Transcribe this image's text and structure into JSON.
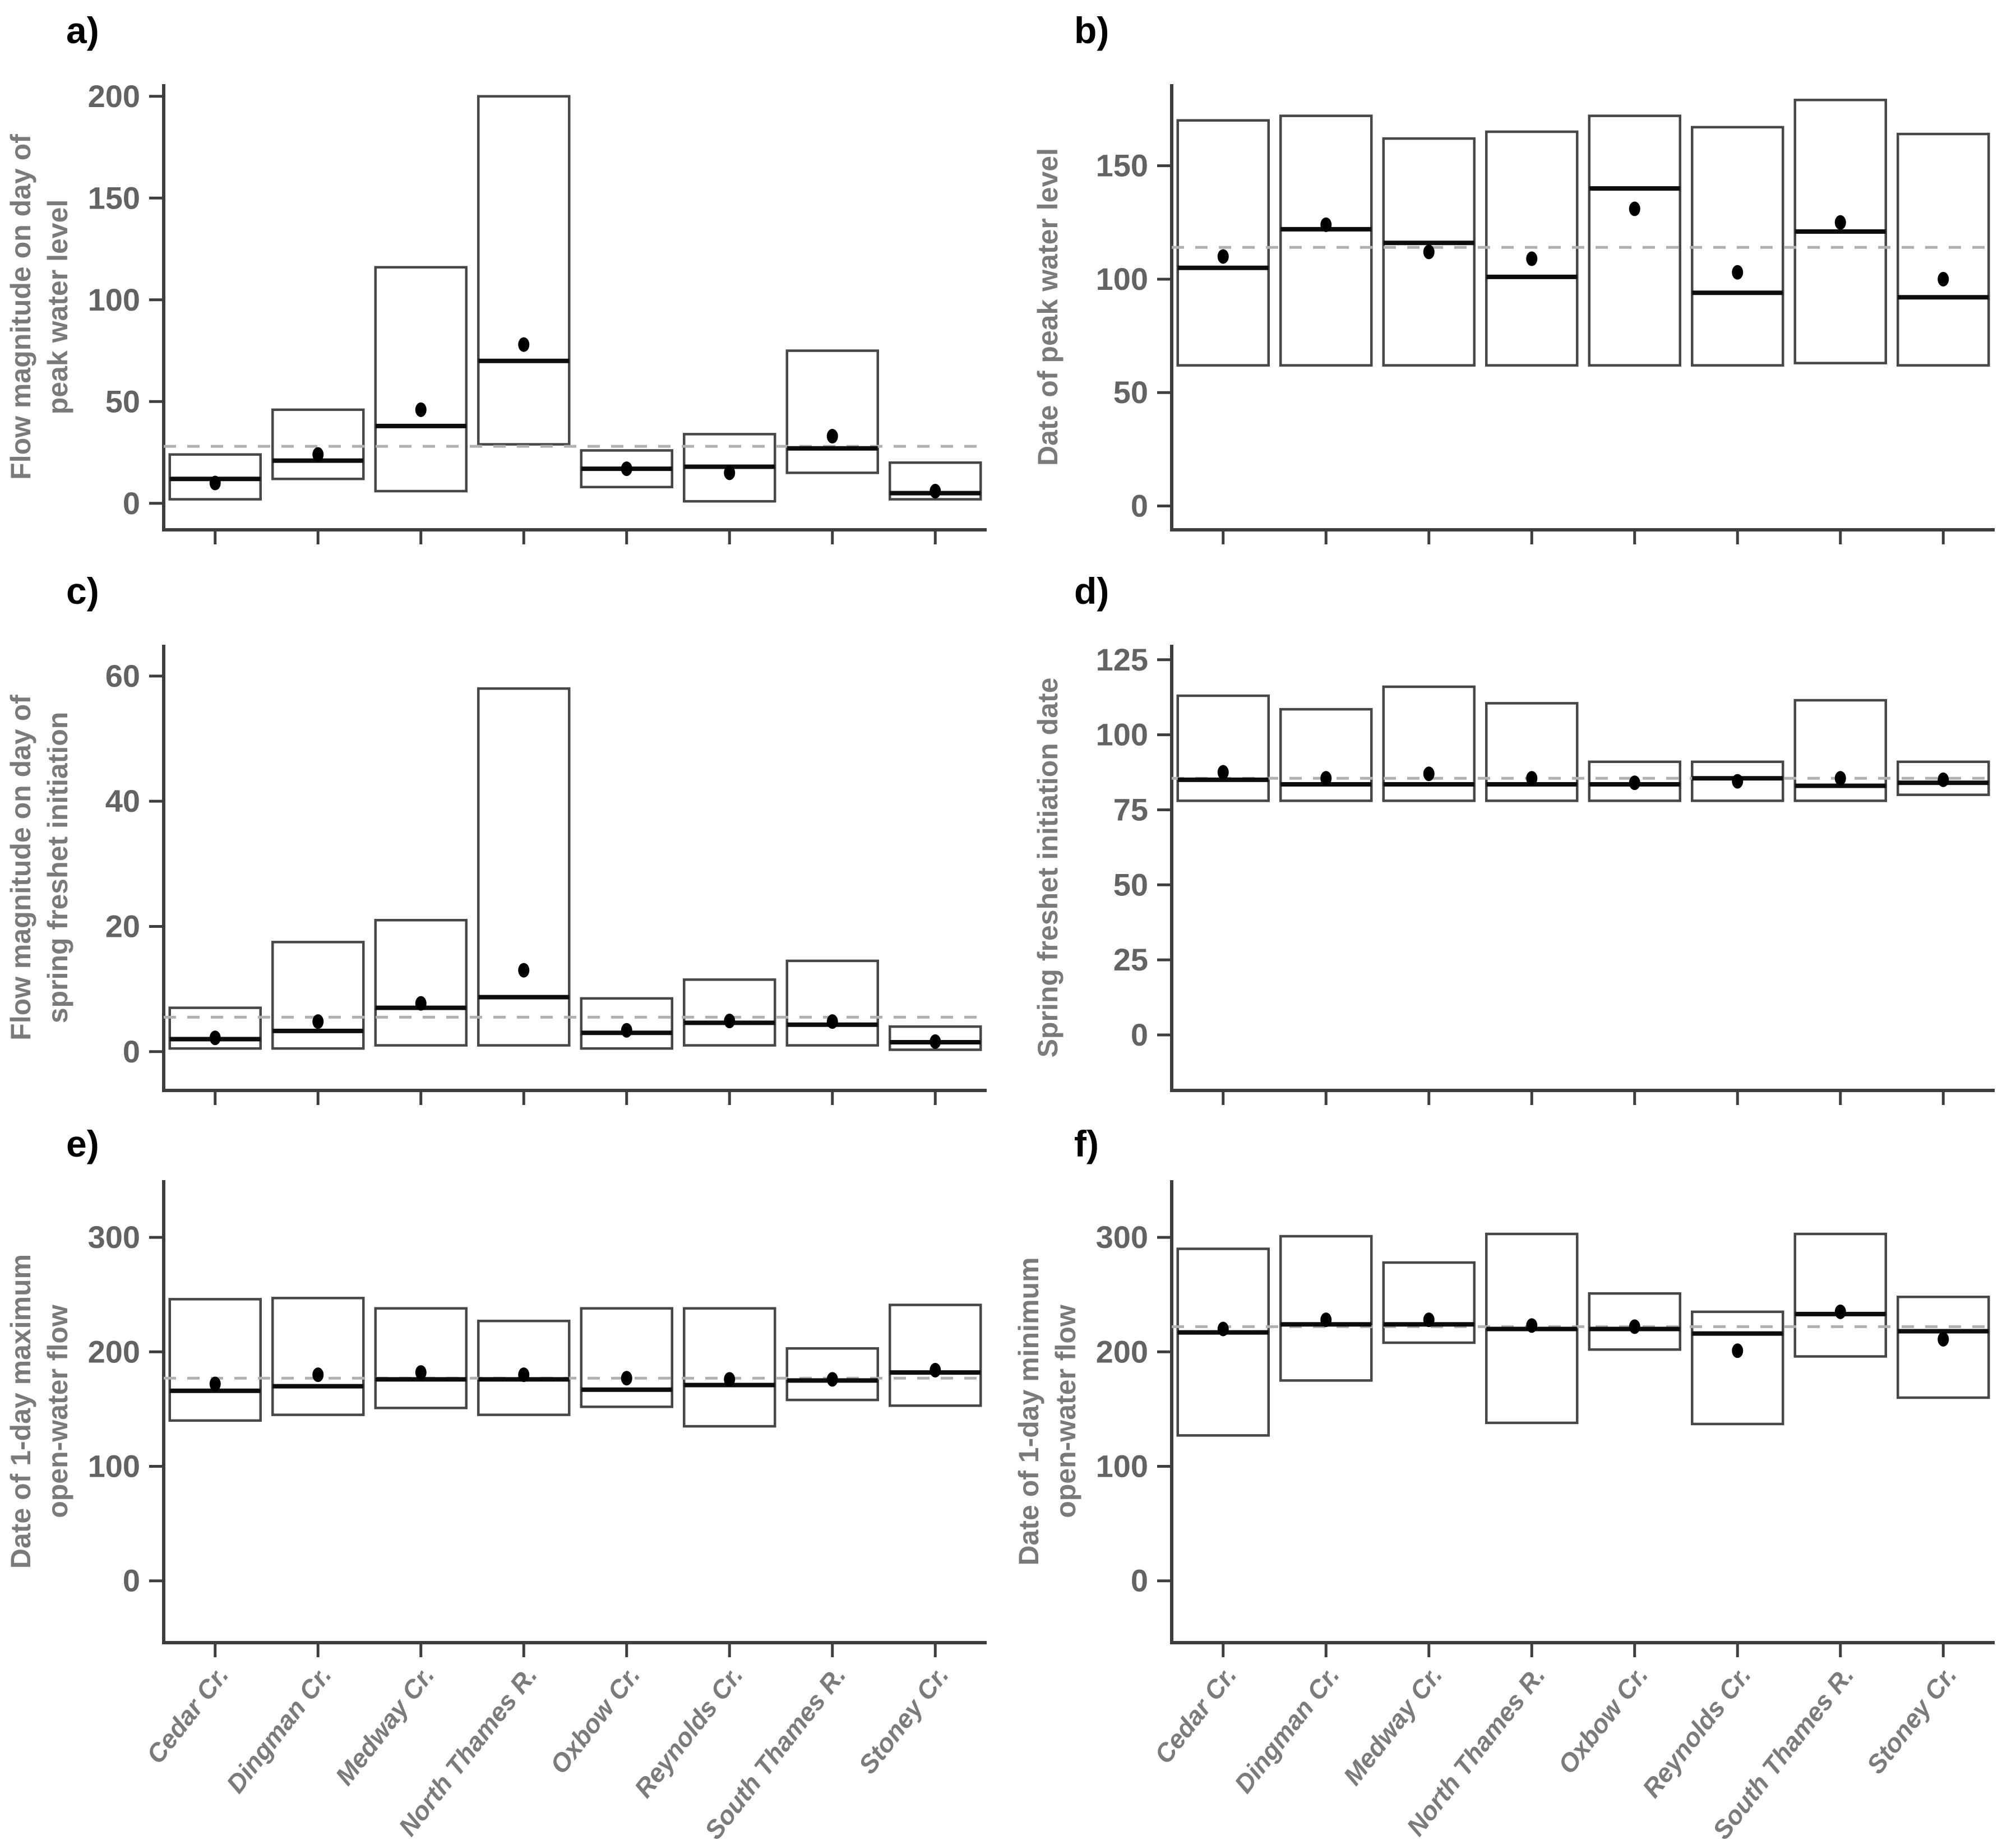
{
  "figure": {
    "panel_grid": "2 columns x 3 rows",
    "background": "#ffffff"
  },
  "categories": [
    "Cedar Cr.",
    "Dingman Cr.",
    "Medway Cr.",
    "North Thames R.",
    "Oxbow Cr.",
    "Reynolds Cr.",
    "South Thames R.",
    "Stoney Cr."
  ],
  "x_axis": {
    "categories": [
      "Cedar Cr.",
      "Dingman Cr.",
      "Medway Cr.",
      "North Thames R.",
      "Oxbow Cr.",
      "Reynolds Cr.",
      "South Thames R.",
      "Stoney Cr."
    ],
    "label_rotation_deg": 52,
    "shown_under_panels": [
      "e)",
      "f)"
    ]
  },
  "colors": {
    "background": "#ffffff",
    "axis": "#3e3e3e",
    "tick_label": "#636363",
    "axis_title": "#7a7a7a",
    "x_category_label": "#7b7b7b",
    "box_stroke": "#474747",
    "box_fill": "#ffffff",
    "median_line": "#0d0d0d",
    "point": "#000000",
    "dashed_reference": "#b0b0b0",
    "panel_letter": "#000000"
  },
  "chart_data": [
    {
      "type": "box",
      "panel_label": "a)",
      "ylabel": "Flow magnitude on day of peak water level",
      "ylabel_lines": [
        "Flow magnitude on day of",
        "peak water level"
      ],
      "xlabel": "",
      "yticks": [
        0,
        50,
        100,
        150,
        200
      ],
      "ylim": [
        -13,
        206
      ],
      "dashed_line": 28,
      "grid": false,
      "legend": "none",
      "boxes": [
        {
          "category": "Cedar Cr.",
          "min": 2,
          "median": 12,
          "max": 24,
          "point": 10
        },
        {
          "category": "Dingman Cr.",
          "min": 12,
          "median": 21,
          "max": 46,
          "point": 24
        },
        {
          "category": "Medway Cr.",
          "min": 6,
          "median": 38,
          "max": 116,
          "point": 46
        },
        {
          "category": "North Thames R.",
          "min": 29,
          "median": 70,
          "max": 200,
          "point": 78
        },
        {
          "category": "Oxbow Cr.",
          "min": 8,
          "median": 17,
          "max": 26,
          "point": 17
        },
        {
          "category": "Reynolds Cr.",
          "min": 1,
          "median": 18,
          "max": 34,
          "point": 15
        },
        {
          "category": "South Thames R.",
          "min": 15,
          "median": 27,
          "max": 75,
          "point": 33
        },
        {
          "category": "Stoney Cr.",
          "min": 2,
          "median": 5,
          "max": 20,
          "point": 6
        }
      ]
    },
    {
      "type": "box",
      "panel_label": "b)",
      "ylabel": "Date of peak water level",
      "ylabel_lines": [
        "Date of peak water level"
      ],
      "xlabel": "",
      "yticks": [
        0,
        50,
        100,
        150
      ],
      "ylim": [
        -10.5,
        186
      ],
      "dashed_line": 114,
      "grid": false,
      "legend": "none",
      "boxes": [
        {
          "category": "Cedar Cr.",
          "min": 62,
          "median": 105,
          "max": 170,
          "point": 110
        },
        {
          "category": "Dingman Cr.",
          "min": 62,
          "median": 122,
          "max": 172,
          "point": 124
        },
        {
          "category": "Medway Cr.",
          "min": 62,
          "median": 116,
          "max": 162,
          "point": 112
        },
        {
          "category": "North Thames R.",
          "min": 62,
          "median": 101,
          "max": 165,
          "point": 109
        },
        {
          "category": "Oxbow Cr.",
          "min": 62,
          "median": 140,
          "max": 172,
          "point": 131
        },
        {
          "category": "Reynolds Cr.",
          "min": 62,
          "median": 94,
          "max": 167,
          "point": 103
        },
        {
          "category": "South Thames R.",
          "min": 63,
          "median": 121,
          "max": 179,
          "point": 125
        },
        {
          "category": "Stoney Cr.",
          "min": 62,
          "median": 92,
          "max": 164,
          "point": 100
        }
      ]
    },
    {
      "type": "box",
      "panel_label": "c)",
      "ylabel": "Flow magnitude on day of spring freshet initiation",
      "ylabel_lines": [
        "Flow magnitude on day of",
        "spring freshet initiation"
      ],
      "xlabel": "",
      "yticks": [
        0,
        20,
        40,
        60
      ],
      "ylim": [
        -6.2,
        65
      ],
      "dashed_line": 5.5,
      "grid": false,
      "legend": "none",
      "boxes": [
        {
          "category": "Cedar Cr.",
          "min": 0.5,
          "median": 2,
          "max": 7,
          "point": 2.2
        },
        {
          "category": "Dingman Cr.",
          "min": 0.5,
          "median": 3.3,
          "max": 17.5,
          "point": 4.8
        },
        {
          "category": "Medway Cr.",
          "min": 1,
          "median": 7,
          "max": 21,
          "point": 7.7
        },
        {
          "category": "North Thames R.",
          "min": 1,
          "median": 8.7,
          "max": 58,
          "point": 13
        },
        {
          "category": "Oxbow Cr.",
          "min": 0.5,
          "median": 3,
          "max": 8.5,
          "point": 3.4
        },
        {
          "category": "Reynolds Cr.",
          "min": 1,
          "median": 4.6,
          "max": 11.5,
          "point": 4.9
        },
        {
          "category": "South Thames R.",
          "min": 1,
          "median": 4.3,
          "max": 14.5,
          "point": 4.8
        },
        {
          "category": "Stoney Cr.",
          "min": 0.3,
          "median": 1.5,
          "max": 4,
          "point": 1.6
        }
      ]
    },
    {
      "type": "box",
      "panel_label": "d)",
      "ylabel": "Spring freshet initiation date",
      "ylabel_lines": [
        "Spring freshet initiation date"
      ],
      "xlabel": "",
      "yticks": [
        0,
        25,
        50,
        75,
        100,
        125
      ],
      "ylim": [
        -18.5,
        130
      ],
      "dashed_line": 85.5,
      "grid": false,
      "legend": "none",
      "boxes": [
        {
          "category": "Cedar Cr.",
          "min": 78,
          "median": 85,
          "max": 113,
          "point": 87.5
        },
        {
          "category": "Dingman Cr.",
          "min": 78,
          "median": 83.5,
          "max": 108.5,
          "point": 85.5
        },
        {
          "category": "Medway Cr.",
          "min": 78,
          "median": 83.5,
          "max": 116,
          "point": 87
        },
        {
          "category": "North Thames R.",
          "min": 78,
          "median": 83.5,
          "max": 110.5,
          "point": 85.5
        },
        {
          "category": "Oxbow Cr.",
          "min": 78,
          "median": 83.5,
          "max": 91,
          "point": 84
        },
        {
          "category": "Reynolds Cr.",
          "min": 78,
          "median": 85.5,
          "max": 91,
          "point": 84.5
        },
        {
          "category": "South Thames R.",
          "min": 78,
          "median": 83,
          "max": 111.5,
          "point": 85.5
        },
        {
          "category": "Stoney Cr.",
          "min": 80,
          "median": 84,
          "max": 91,
          "point": 85
        }
      ]
    },
    {
      "type": "box",
      "panel_label": "e)",
      "ylabel": "Date of 1-day maximum open-water flow",
      "ylabel_lines": [
        "Date of 1-day maximum",
        "open-water flow"
      ],
      "xlabel": "",
      "yticks": [
        0,
        100,
        200,
        300
      ],
      "ylim": [
        -54,
        350
      ],
      "dashed_line": 177,
      "grid": false,
      "legend": "none",
      "boxes": [
        {
          "category": "Cedar Cr.",
          "min": 140,
          "median": 166,
          "max": 246,
          "point": 172
        },
        {
          "category": "Dingman Cr.",
          "min": 145,
          "median": 170,
          "max": 247,
          "point": 180
        },
        {
          "category": "Medway Cr.",
          "min": 151,
          "median": 176,
          "max": 238,
          "point": 182
        },
        {
          "category": "North Thames R.",
          "min": 145,
          "median": 176,
          "max": 227,
          "point": 180
        },
        {
          "category": "Oxbow Cr.",
          "min": 152,
          "median": 167,
          "max": 238,
          "point": 177
        },
        {
          "category": "Reynolds Cr.",
          "min": 135,
          "median": 171,
          "max": 238,
          "point": 176
        },
        {
          "category": "South Thames R.",
          "min": 158,
          "median": 175,
          "max": 203,
          "point": 176
        },
        {
          "category": "Stoney Cr.",
          "min": 153,
          "median": 182,
          "max": 241,
          "point": 184
        }
      ]
    },
    {
      "type": "box",
      "panel_label": "f)",
      "ylabel": "Date of 1-day minimum open-water flow",
      "ylabel_lines": [
        "Date of 1-day minimum",
        "open-water flow"
      ],
      "xlabel": "",
      "yticks": [
        0,
        100,
        200,
        300
      ],
      "ylim": [
        -54,
        350
      ],
      "dashed_line": 222,
      "grid": false,
      "legend": "none",
      "boxes": [
        {
          "category": "Cedar Cr.",
          "min": 127,
          "median": 217,
          "max": 290,
          "point": 220
        },
        {
          "category": "Dingman Cr.",
          "min": 175,
          "median": 224,
          "max": 301,
          "point": 228
        },
        {
          "category": "Medway Cr.",
          "min": 208,
          "median": 224,
          "max": 278,
          "point": 228
        },
        {
          "category": "North Thames R.",
          "min": 138,
          "median": 220,
          "max": 303,
          "point": 223
        },
        {
          "category": "Oxbow Cr.",
          "min": 202,
          "median": 220,
          "max": 251,
          "point": 222
        },
        {
          "category": "Reynolds Cr.",
          "min": 137,
          "median": 216,
          "max": 235,
          "point": 201
        },
        {
          "category": "South Thames R.",
          "min": 196,
          "median": 233,
          "max": 303,
          "point": 235
        },
        {
          "category": "Stoney Cr.",
          "min": 160,
          "median": 218,
          "max": 248,
          "point": 211
        }
      ]
    }
  ]
}
